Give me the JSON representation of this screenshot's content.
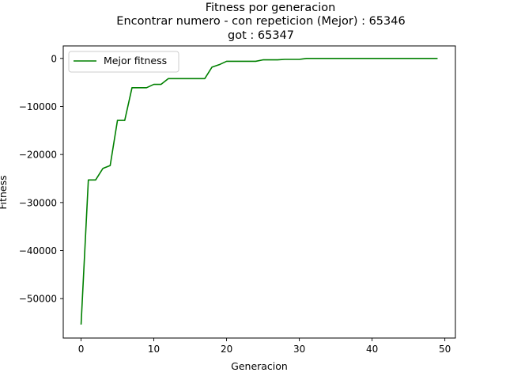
{
  "chart_data": {
    "type": "line",
    "title_lines": [
      "Fitness por generacion",
      "Encontrar numero - con repeticion (Mejor) : 65346",
      "got : 65347"
    ],
    "xlabel": "Generacion",
    "ylabel": "Fitness",
    "xlim": [
      -2.45,
      51.45
    ],
    "ylim": [
      -58200,
      2600
    ],
    "x_ticks": [
      0,
      10,
      20,
      30,
      40,
      50
    ],
    "y_ticks": [
      0,
      -10000,
      -20000,
      -30000,
      -40000,
      -50000
    ],
    "x_tick_labels": [
      "0",
      "10",
      "20",
      "30",
      "40",
      "50"
    ],
    "y_tick_labels": [
      "0",
      "−10000",
      "−20000",
      "−30000",
      "−40000",
      "−50000"
    ],
    "legend_position": "upper left",
    "grid": false,
    "series": [
      {
        "name": "Mejor fitness",
        "color": "#008000",
        "x": [
          0,
          1,
          2,
          3,
          4,
          5,
          6,
          7,
          8,
          9,
          10,
          11,
          12,
          13,
          14,
          15,
          16,
          17,
          18,
          19,
          20,
          21,
          22,
          23,
          24,
          25,
          26,
          27,
          28,
          29,
          30,
          31,
          32,
          33,
          34,
          35,
          36,
          37,
          38,
          39,
          40,
          41,
          42,
          43,
          44,
          45,
          46,
          47,
          48,
          49
        ],
        "y": [
          -55400,
          -25300,
          -25300,
          -22900,
          -22300,
          -12900,
          -12900,
          -6100,
          -6100,
          -6100,
          -5400,
          -5400,
          -4200,
          -4200,
          -4200,
          -4200,
          -4200,
          -4200,
          -1800,
          -1300,
          -600,
          -600,
          -600,
          -600,
          -600,
          -300,
          -300,
          -300,
          -200,
          -200,
          -200,
          -1,
          -1,
          -1,
          -1,
          -1,
          -1,
          -1,
          -1,
          -1,
          -1,
          -1,
          -1,
          -1,
          -1,
          -1,
          -1,
          -1,
          -1,
          -1
        ]
      }
    ]
  }
}
